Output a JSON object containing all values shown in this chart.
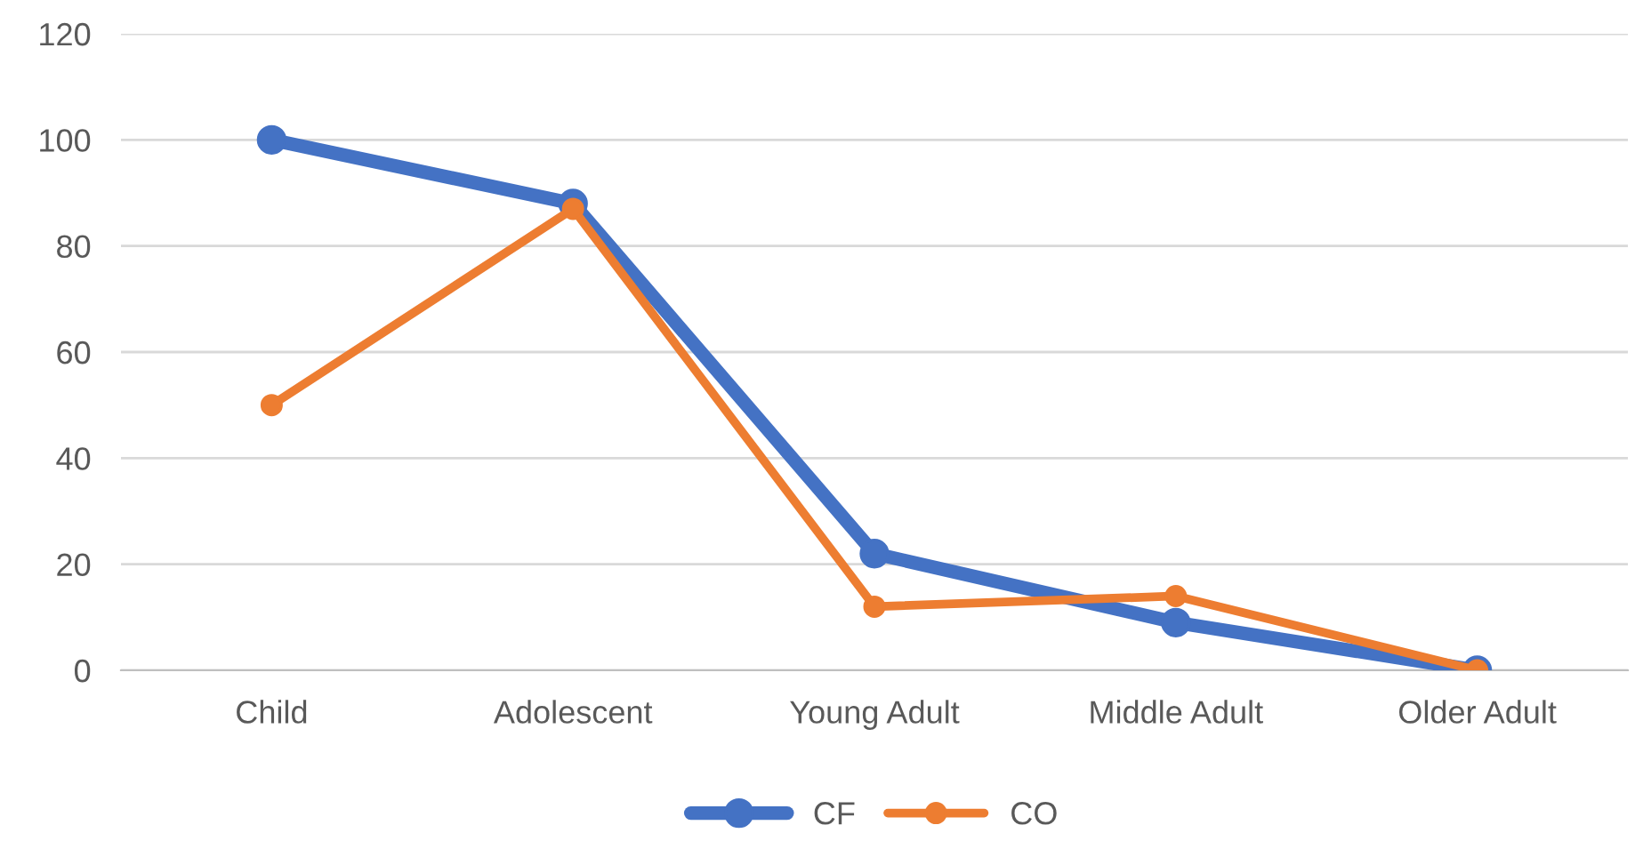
{
  "chart_data": {
    "type": "line",
    "categories": [
      "Child",
      "Adolescent",
      "Young Adult",
      "Middle Adult",
      "Older Adult"
    ],
    "series": [
      {
        "name": "CF",
        "color": "#4472c4",
        "values": [
          100,
          88,
          22,
          9,
          0
        ]
      },
      {
        "name": "CO",
        "color": "#ed7d31",
        "values": [
          50,
          87,
          12,
          14,
          0
        ]
      }
    ],
    "ylim": [
      0,
      120
    ],
    "yticks": [
      0,
      20,
      40,
      60,
      80,
      100,
      120
    ],
    "grid": "y",
    "legend": "bottom",
    "marker": "circle",
    "line_style": "solid"
  }
}
